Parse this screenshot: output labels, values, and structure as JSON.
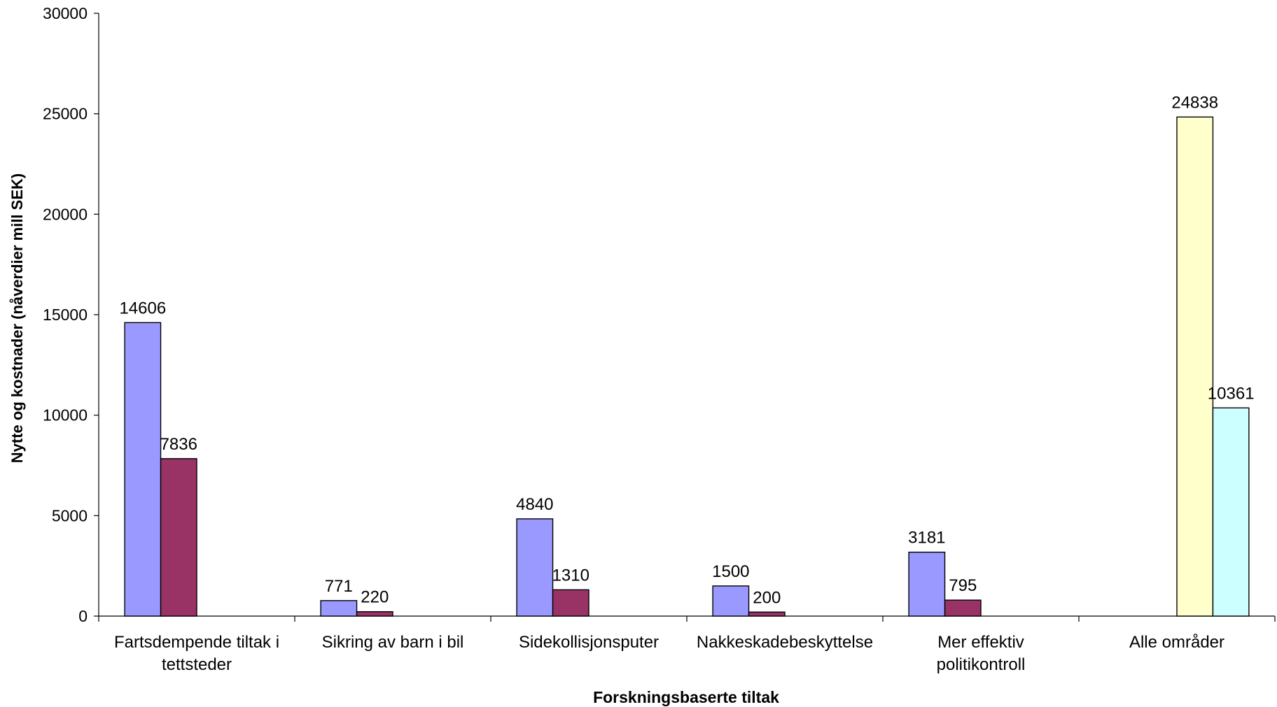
{
  "chart_data": {
    "type": "bar",
    "xlabel": "Forskningsbaserte tiltak",
    "ylabel": "Nytte og kostnader (nåverdier mill SEK)",
    "ylim": [
      0,
      30000
    ],
    "yticks": [
      0,
      5000,
      10000,
      15000,
      20000,
      25000,
      30000
    ],
    "grid": false,
    "legend": "none",
    "categories": [
      [
        "Fartsdempende tiltak i",
        "tettsteder"
      ],
      [
        "Sikring av barn i bil"
      ],
      [
        "Sidekollisjonsputer"
      ],
      [
        "Nakkeskadebeskyttelse"
      ],
      [
        "Mer effektiv",
        "politikontroll"
      ],
      [
        "Alle områder"
      ]
    ],
    "series": [
      {
        "values": [
          14606,
          771,
          4840,
          1500,
          3181,
          null
        ],
        "color": "#9999ff"
      },
      {
        "values": [
          7836,
          220,
          1310,
          200,
          795,
          null
        ],
        "color": "#993366"
      },
      {
        "values": [
          null,
          null,
          null,
          null,
          null,
          24838
        ],
        "color": "#ffffcc"
      },
      {
        "values": [
          null,
          null,
          null,
          null,
          null,
          10361
        ],
        "color": "#ccffff"
      }
    ]
  }
}
